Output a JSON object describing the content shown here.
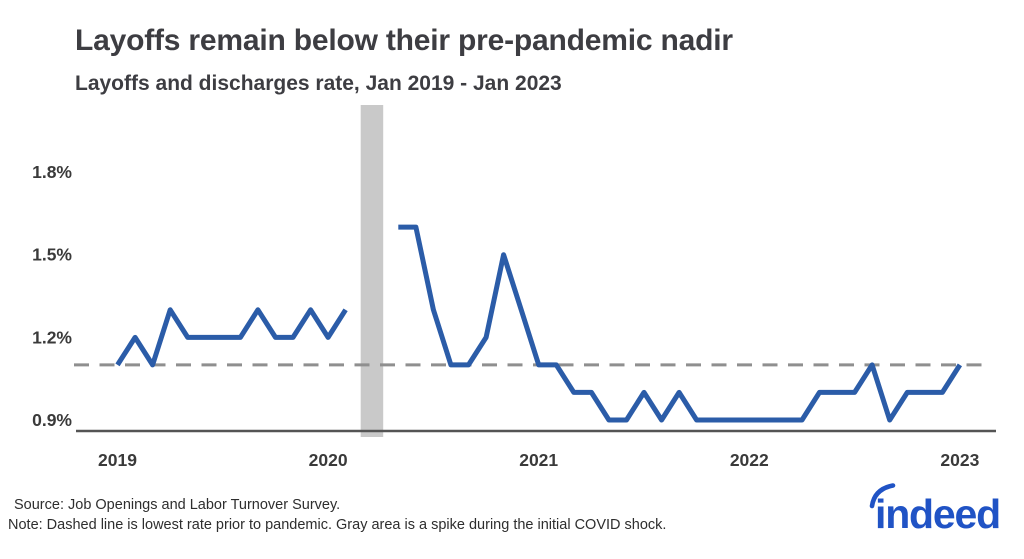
{
  "header": {
    "title": "Layoffs remain below their pre-pandemic nadir",
    "subtitle": "Layoffs and discharges rate, Jan 2019 - Jan 2023"
  },
  "footer": {
    "source": "Source: Job Openings and Labor Turnover Survey.",
    "note": "Note: Dashed line is lowest rate prior to pandemic. Gray area is a spike during the initial COVID shock.",
    "logo_text": "indeed"
  },
  "colors": {
    "line": "#2b5ca8",
    "dashed_line": "#8f8f8f",
    "shock_band": "#c9c9c9",
    "axis": "#545454",
    "tick_text": "#3a3a3a",
    "title_text": "#3d3d42",
    "logo_blue": "#2053c5"
  },
  "chart_data": {
    "type": "line",
    "title": "Layoffs remain below their pre-pandemic nadir",
    "subtitle": "Layoffs and discharges rate, Jan 2019 - Jan 2023",
    "unit": "percent",
    "grid": false,
    "legend": "none",
    "x": [
      "2019-01",
      "2019-02",
      "2019-03",
      "2019-04",
      "2019-05",
      "2019-06",
      "2019-07",
      "2019-08",
      "2019-09",
      "2019-10",
      "2019-11",
      "2019-12",
      "2020-01",
      "2020-02",
      "2020-03",
      "2020-04",
      "2020-05",
      "2020-06",
      "2020-07",
      "2020-08",
      "2020-09",
      "2020-10",
      "2020-11",
      "2020-12",
      "2021-01",
      "2021-02",
      "2021-03",
      "2021-04",
      "2021-05",
      "2021-06",
      "2021-07",
      "2021-08",
      "2021-09",
      "2021-10",
      "2021-11",
      "2021-12",
      "2022-01",
      "2022-02",
      "2022-03",
      "2022-04",
      "2022-05",
      "2022-06",
      "2022-07",
      "2022-08",
      "2022-09",
      "2022-10",
      "2022-11",
      "2022-12",
      "2023-01"
    ],
    "series": [
      {
        "name": "Layoffs and discharges rate",
        "values": [
          1.1,
          1.2,
          1.1,
          1.3,
          1.2,
          1.2,
          1.2,
          1.2,
          1.3,
          1.2,
          1.2,
          1.3,
          1.2,
          1.3,
          null,
          null,
          1.6,
          1.6,
          1.3,
          1.1,
          1.1,
          1.2,
          1.5,
          1.3,
          1.1,
          1.1,
          1.0,
          1.0,
          0.9,
          0.9,
          1.0,
          0.9,
          1.0,
          0.9,
          0.9,
          0.9,
          0.9,
          0.9,
          0.9,
          0.9,
          1.0,
          1.0,
          1.0,
          1.1,
          0.9,
          1.0,
          1.0,
          1.0,
          1.1
        ]
      }
    ],
    "values_offchart_note": "2020-03 and 2020-04 spiked far above the visible axis range and are masked by the gray band",
    "ylim": [
      0.82,
      1.98
    ],
    "ytick_values": [
      0.9,
      1.2,
      1.5,
      1.8
    ],
    "ytick_labels": [
      "0.9%",
      "1.2%",
      "1.5%",
      "1.8%"
    ],
    "xticks": [
      {
        "label": "2019",
        "month": "2019-01"
      },
      {
        "label": "2020",
        "month": "2020-01"
      },
      {
        "label": "2021",
        "month": "2021-01"
      },
      {
        "label": "2022",
        "month": "2022-01"
      },
      {
        "label": "2023",
        "month": "2023-01"
      }
    ],
    "reference_line": {
      "value": 1.1,
      "style": "dashed",
      "label": "lowest rate prior to pandemic"
    },
    "shock_band": {
      "from": "2020-03",
      "to": "2020-04",
      "label": "spike during the initial COVID shock"
    }
  }
}
